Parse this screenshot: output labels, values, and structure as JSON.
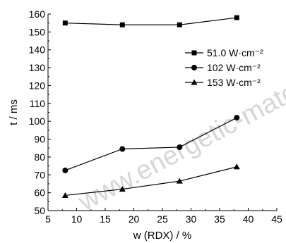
{
  "chart_data": {
    "type": "line",
    "ylabel": "t / ms",
    "xlabel": "w (RDX) / %",
    "xlim": [
      5,
      45
    ],
    "ylim": [
      50,
      160
    ],
    "xticks": [
      5,
      10,
      15,
      20,
      25,
      30,
      35,
      40,
      45
    ],
    "yticks": [
      50,
      60,
      70,
      80,
      90,
      100,
      110,
      120,
      130,
      140,
      150,
      160
    ],
    "x": [
      8,
      18,
      28,
      38
    ],
    "series": [
      {
        "name": "51.0 W·cm⁻²",
        "marker": "square",
        "values": [
          155,
          154,
          154,
          158
        ]
      },
      {
        "name": "102  W·cm⁻²",
        "marker": "circle",
        "values": [
          72.5,
          84.5,
          85.5,
          102
        ]
      },
      {
        "name": "153  W·cm⁻²",
        "marker": "triangle",
        "values": [
          58.5,
          62,
          66.5,
          74.5
        ]
      }
    ],
    "legend_position": "upper-right",
    "grid": false
  },
  "watermark": "www.energetic-materials.org.cn"
}
